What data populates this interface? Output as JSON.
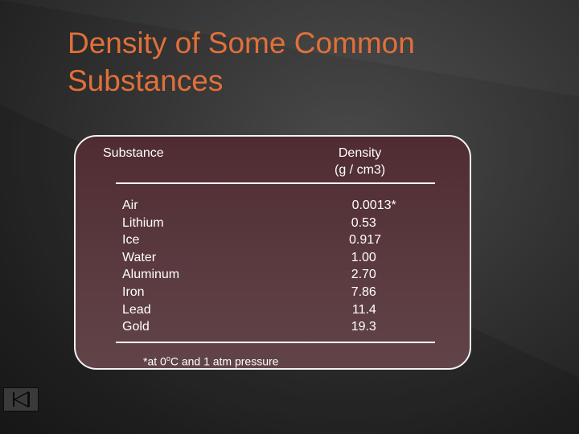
{
  "slide": {
    "title": "Density of Some Common Substances"
  },
  "table": {
    "header_substance": "Substance",
    "header_density_line1": "Density",
    "header_density_line2": "(g / cm3)",
    "rows": [
      {
        "substance": "Air",
        "density": "0.0013*"
      },
      {
        "substance": "Lithium",
        "density": "0.53"
      },
      {
        "substance": "Ice",
        "density": "0.917"
      },
      {
        "substance": "Water",
        "density": "1.00"
      },
      {
        "substance": "Aluminum",
        "density": "2.70"
      },
      {
        "substance": "Iron",
        "density": "7.86"
      },
      {
        "substance": "Lead",
        "density": "11.4"
      },
      {
        "substance": "Gold",
        "density": "19.3"
      }
    ],
    "footnote_prefix": "*at 0",
    "footnote_sup": "o",
    "footnote_suffix": "C and 1 atm pressure"
  },
  "nav": {
    "icon": "skip-to-start-icon"
  },
  "colors": {
    "title": "#e0703a",
    "table_fill": "#5a3a3f",
    "table_border": "#f2f2f2",
    "text": "#ffffff"
  }
}
